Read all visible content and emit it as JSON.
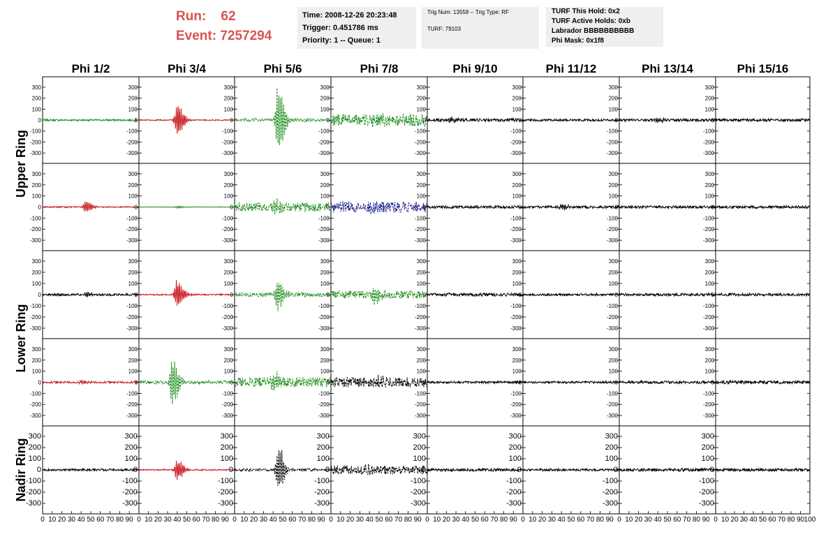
{
  "header": {
    "run_label": "Run:",
    "run_value": "62",
    "event_label": "Event:",
    "event_value": "7257294"
  },
  "info_boxes": {
    "time": "Time: 2008-12-26 20:23:48",
    "trigger": "Trigger: 0.451786 ms",
    "priority": "Priority: 1 -- Queue: 1",
    "trig_num": "Trig Num: 13558 -- Trig Type: RF",
    "turf": "TURF: 79103",
    "turf_this_hold": "TURF This Hold: 0x2",
    "turf_active_holds": "TURF Active Holds: 0xb",
    "labrador": "Labrador BBBBBBBBBB",
    "phi_mask": "Phi Mask: 0x1f8"
  },
  "columns": [
    "Phi 1/2",
    "Phi 3/4",
    "Phi 5/6",
    "Phi 7/8",
    "Phi 9/10",
    "Phi 11/12",
    "Phi 13/14",
    "Phi 15/16"
  ],
  "ring_labels": [
    "Upper Ring",
    "Lower Ring",
    "Nadir Ring"
  ],
  "colors": {
    "header_red": "#d9534f",
    "info_bg": "#efefef",
    "green": "#1e8c1e",
    "red": "#c8181e",
    "blue": "#1c1c8c",
    "black": "#000000"
  },
  "chart_data": {
    "type": "line",
    "rows": 5,
    "cols": 8,
    "xlim": [
      0,
      100
    ],
    "ylim": [
      -350,
      350
    ],
    "x_ticks": [
      "0",
      "10",
      "20",
      "30",
      "40",
      "50",
      "60",
      "70",
      "80",
      "90",
      "100"
    ],
    "y_ticks": [
      "300",
      "200",
      "100",
      "0",
      "-100",
      "-200",
      "-300"
    ],
    "panels": [
      [
        {
          "color": "green",
          "style": "solid",
          "noise": 8,
          "burst_center": 0,
          "burst_amp": 0
        },
        {
          "color": "red",
          "style": "solid",
          "noise": 5,
          "burst_center": 40,
          "burst_amp": 160
        },
        {
          "color": "green",
          "style": "dashed",
          "noise": 15,
          "burst_center": 45,
          "burst_amp": 340
        },
        {
          "color": "green",
          "style": "dashed",
          "noise": 55,
          "burst_center": 40,
          "burst_amp": 20
        },
        {
          "color": "black",
          "style": "solid",
          "noise": 14,
          "burst_center": 25,
          "burst_amp": 35
        },
        {
          "color": "black",
          "style": "solid",
          "noise": 10,
          "burst_center": 0,
          "burst_amp": 0
        },
        {
          "color": "black",
          "style": "solid",
          "noise": 12,
          "burst_center": 40,
          "burst_amp": 20
        },
        {
          "color": "black",
          "style": "solid",
          "noise": 12,
          "burst_center": 0,
          "burst_amp": 0
        }
      ],
      [
        {
          "color": "red",
          "style": "solid",
          "noise": 6,
          "burst_center": 45,
          "burst_amp": 60
        },
        {
          "color": "green",
          "style": "solid",
          "noise": 2,
          "burst_center": 40,
          "burst_amp": 10
        },
        {
          "color": "green",
          "style": "dashed",
          "noise": 40,
          "burst_center": 40,
          "burst_amp": 90
        },
        {
          "color": "blue",
          "style": "dashed",
          "noise": 50,
          "burst_center": 40,
          "burst_amp": 30
        },
        {
          "color": "black",
          "style": "solid",
          "noise": 12,
          "burst_center": 0,
          "burst_amp": 0
        },
        {
          "color": "black",
          "style": "solid",
          "noise": 12,
          "burst_center": 40,
          "burst_amp": 30
        },
        {
          "color": "black",
          "style": "solid",
          "noise": 12,
          "burst_center": 0,
          "burst_amp": 0
        },
        {
          "color": "black",
          "style": "solid",
          "noise": 12,
          "burst_center": 0,
          "burst_amp": 0
        }
      ],
      [
        {
          "color": "black",
          "style": "solid",
          "noise": 10,
          "burst_center": 45,
          "burst_amp": 20
        },
        {
          "color": "red",
          "style": "solid",
          "noise": 6,
          "burst_center": 40,
          "burst_amp": 150
        },
        {
          "color": "green",
          "style": "dashed",
          "noise": 20,
          "burst_center": 45,
          "burst_amp": 160
        },
        {
          "color": "green",
          "style": "dashed",
          "noise": 35,
          "burst_center": 45,
          "burst_amp": 80
        },
        {
          "color": "black",
          "style": "solid",
          "noise": 14,
          "burst_center": 0,
          "burst_amp": 0
        },
        {
          "color": "black",
          "style": "solid",
          "noise": 10,
          "burst_center": 0,
          "burst_amp": 0
        },
        {
          "color": "black",
          "style": "solid",
          "noise": 12,
          "burst_center": 0,
          "burst_amp": 0
        },
        {
          "color": "black",
          "style": "solid",
          "noise": 12,
          "burst_center": 0,
          "burst_amp": 0
        }
      ],
      [
        {
          "color": "red",
          "style": "solid",
          "noise": 10,
          "burst_center": 40,
          "burst_amp": 20
        },
        {
          "color": "green",
          "style": "dashed",
          "noise": 15,
          "burst_center": 35,
          "burst_amp": 240
        },
        {
          "color": "green",
          "style": "dashed",
          "noise": 45,
          "burst_center": 40,
          "burst_amp": 80
        },
        {
          "color": "black",
          "style": "dashed",
          "noise": 45,
          "burst_center": 50,
          "burst_amp": 30
        },
        {
          "color": "black",
          "style": "solid",
          "noise": 10,
          "burst_center": 0,
          "burst_amp": 0
        },
        {
          "color": "black",
          "style": "solid",
          "noise": 10,
          "burst_center": 0,
          "burst_amp": 0
        },
        {
          "color": "black",
          "style": "solid",
          "noise": 12,
          "burst_center": 0,
          "burst_amp": 0
        },
        {
          "color": "black",
          "style": "solid",
          "noise": 14,
          "burst_center": 0,
          "burst_amp": 0
        }
      ],
      [
        {
          "color": "black",
          "style": "solid",
          "noise": 10,
          "burst_center": 0,
          "burst_amp": 0
        },
        {
          "color": "red",
          "style": "solid",
          "noise": 6,
          "burst_center": 40,
          "burst_amp": 110
        },
        {
          "color": "black",
          "style": "dashed",
          "noise": 12,
          "burst_center": 45,
          "burst_amp": 230
        },
        {
          "color": "black",
          "style": "dashed",
          "noise": 40,
          "burst_center": 35,
          "burst_amp": 30
        },
        {
          "color": "black",
          "style": "solid",
          "noise": 12,
          "burst_center": 0,
          "burst_amp": 0
        },
        {
          "color": "black",
          "style": "solid",
          "noise": 10,
          "burst_center": 0,
          "burst_amp": 0
        },
        {
          "color": "black",
          "style": "solid",
          "noise": 14,
          "burst_center": 0,
          "burst_amp": 0
        },
        {
          "color": "black",
          "style": "solid",
          "noise": 12,
          "burst_center": 0,
          "burst_amp": 0
        }
      ]
    ]
  }
}
